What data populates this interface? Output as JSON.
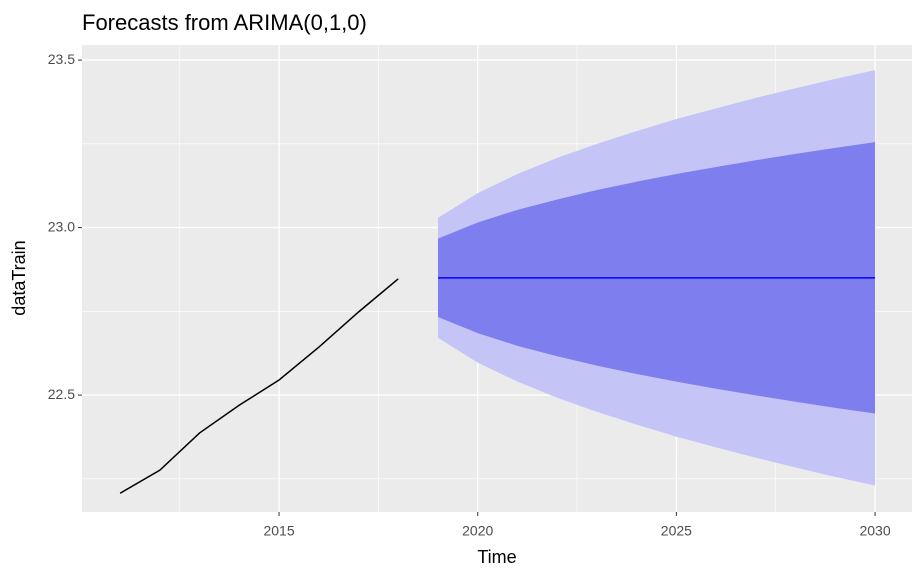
{
  "chart_data": {
    "type": "line",
    "title": "Forecasts from ARIMA(0,1,0)",
    "x_label": "Time",
    "y_label": "dataTrain",
    "x": [
      2011,
      2012,
      2013,
      2014,
      2015,
      2016,
      2017,
      2018,
      2019,
      2020,
      2021,
      2022,
      2023,
      2024,
      2025,
      2026,
      2027,
      2028,
      2029,
      2030
    ],
    "series": [
      {
        "color": "#000000",
        "values": [
          22.207,
          22.276,
          22.387,
          22.47,
          22.545,
          22.643,
          22.748,
          22.847,
          null,
          null,
          null,
          null,
          null,
          null,
          null,
          null,
          null,
          null,
          null,
          null
        ]
      },
      {
        "color": "#0000ff",
        "values": [
          null,
          null,
          null,
          null,
          null,
          null,
          null,
          null,
          22.85,
          22.85,
          22.85,
          22.85,
          22.85,
          22.85,
          22.85,
          22.85,
          22.85,
          22.85,
          22.85,
          22.85
        ]
      }
    ],
    "bands": [
      {
        "color": "#c4c4f6",
        "lower": [
          null,
          null,
          null,
          null,
          null,
          null,
          null,
          null,
          22.671,
          22.597,
          22.54,
          22.492,
          22.45,
          22.412,
          22.376,
          22.344,
          22.313,
          22.284,
          22.256,
          22.23
        ],
        "upper": [
          null,
          null,
          null,
          null,
          null,
          null,
          null,
          null,
          23.029,
          23.103,
          23.16,
          23.208,
          23.25,
          23.288,
          23.324,
          23.356,
          23.387,
          23.416,
          23.444,
          23.47
        ]
      },
      {
        "color": "#7e7eee",
        "lower": [
          null,
          null,
          null,
          null,
          null,
          null,
          null,
          null,
          22.733,
          22.685,
          22.647,
          22.616,
          22.588,
          22.563,
          22.54,
          22.519,
          22.499,
          22.48,
          22.462,
          22.445
        ],
        "upper": [
          null,
          null,
          null,
          null,
          null,
          null,
          null,
          null,
          22.967,
          23.015,
          23.053,
          23.084,
          23.112,
          23.137,
          23.16,
          23.181,
          23.201,
          23.22,
          23.238,
          23.255
        ]
      }
    ],
    "xlim": [
      2010.04,
      2030.93
    ],
    "ylim": [
      22.151,
      23.545
    ],
    "xticks": [
      2015,
      2020,
      2025,
      2030
    ],
    "yticks": [
      22.5,
      {
        "value": 23,
        "label": "23.0"
      },
      23.5
    ],
    "xminor": [
      2012.5,
      2017.5,
      2022.5,
      2027.5
    ],
    "yminor": [
      22.25,
      22.75,
      23.25
    ],
    "grid": true,
    "background": "#ebebeb"
  }
}
